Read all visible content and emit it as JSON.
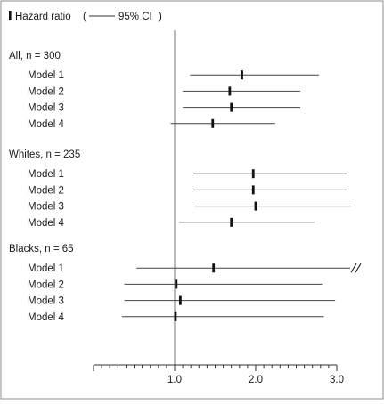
{
  "chart_data": {
    "type": "forest",
    "legend": {
      "point_label": "Hazard ratio",
      "ci_label": "95% CI"
    },
    "x_axis": {
      "range": [
        0.0,
        3.0
      ],
      "reference_line": 1.0,
      "major_ticks": [
        1.0,
        2.0,
        3.0
      ],
      "tick_labels": [
        "1.0",
        "2.0",
        "3.0"
      ],
      "minor_tick_step": 0.1
    },
    "groups": [
      {
        "label": "All, n = 300",
        "rows": [
          {
            "label": "Model 1",
            "hr": 1.83,
            "lo": 1.19,
            "hi": 2.78
          },
          {
            "label": "Model 2",
            "hr": 1.68,
            "lo": 1.1,
            "hi": 2.55
          },
          {
            "label": "Model 3",
            "hr": 1.7,
            "lo": 1.1,
            "hi": 2.55
          },
          {
            "label": "Model 4",
            "hr": 1.47,
            "lo": 0.95,
            "hi": 2.24
          }
        ]
      },
      {
        "label": "Whites, n = 235",
        "rows": [
          {
            "label": "Model 1",
            "hr": 1.97,
            "lo": 1.23,
            "hi": 3.12
          },
          {
            "label": "Model 2",
            "hr": 1.97,
            "lo": 1.23,
            "hi": 3.12
          },
          {
            "label": "Model 3",
            "hr": 2.0,
            "lo": 1.25,
            "hi": 3.18
          },
          {
            "label": "Model 4",
            "hr": 1.7,
            "lo": 1.05,
            "hi": 2.72
          }
        ]
      },
      {
        "label": "Blacks, n = 65",
        "rows": [
          {
            "label": "Model 1",
            "hr": 1.48,
            "lo": 0.53,
            "hi": 3.2,
            "truncated": true
          },
          {
            "label": "Model 2",
            "hr": 1.02,
            "lo": 0.38,
            "hi": 2.82
          },
          {
            "label": "Model 3",
            "hr": 1.07,
            "lo": 0.38,
            "hi": 2.98
          },
          {
            "label": "Model 4",
            "hr": 1.01,
            "lo": 0.35,
            "hi": 2.84
          }
        ]
      }
    ]
  }
}
